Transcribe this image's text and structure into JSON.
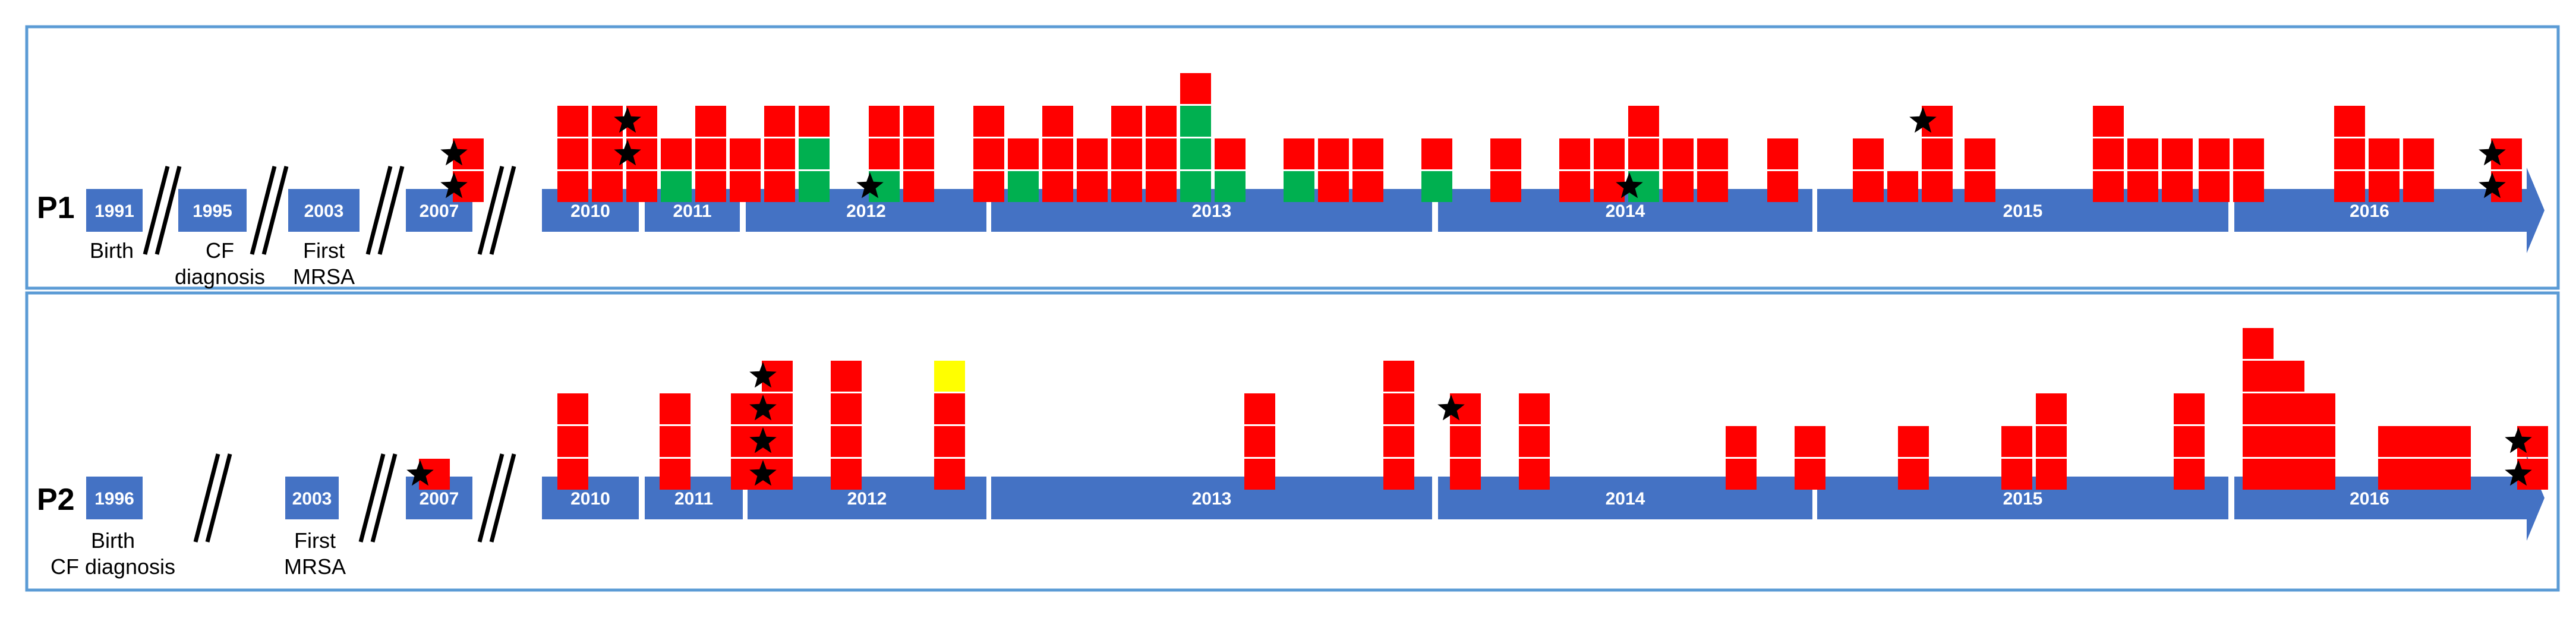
{
  "colors": {
    "frame": "#5b9bd5",
    "axis": "#4472c4",
    "red": "#ff0000",
    "green": "#00b050",
    "yellow": "#ffff00",
    "star": "#000000"
  },
  "panels": [
    {
      "label": "P1",
      "timeline": {
        "pre_years": [
          "1991",
          "1995",
          "2003",
          "2007"
        ],
        "years": [
          "2010",
          "2011",
          "2012",
          "2013",
          "2014",
          "2015",
          "2016"
        ]
      },
      "notes": [
        [
          "Birth"
        ],
        [
          "CF",
          "diagnosis"
        ],
        [
          "First",
          "MRSA"
        ]
      ],
      "columns": [
        {
          "stack": [
            "red",
            "red"
          ],
          "stars": [
            0,
            1
          ]
        },
        {
          "stack": [
            "red",
            "red",
            "red"
          ]
        },
        {
          "stack": [
            "red",
            "red",
            "red"
          ]
        },
        {
          "stack": [
            "red",
            "red",
            "red"
          ],
          "stars": [
            1,
            2
          ]
        },
        {
          "stack": [
            "green",
            "red"
          ]
        },
        {
          "stack": [
            "red",
            "red",
            "red"
          ]
        },
        {
          "stack": [
            "red",
            "red"
          ]
        },
        {
          "stack": [
            "red",
            "red",
            "red"
          ]
        },
        {
          "stack": [
            "green",
            "green",
            "red"
          ]
        },
        {
          "stack": [
            "green",
            "red",
            "red"
          ],
          "stars": [
            0
          ]
        },
        {
          "stack": [
            "red",
            "red",
            "red"
          ]
        },
        {
          "stack": [
            "red",
            "red",
            "red"
          ]
        },
        {
          "stack": [
            "green",
            "red"
          ]
        },
        {
          "stack": [
            "red",
            "red",
            "red"
          ]
        },
        {
          "stack": [
            "red",
            "red"
          ]
        },
        {
          "stack": [
            "red",
            "red",
            "red"
          ]
        },
        {
          "stack": [
            "red",
            "red",
            "red"
          ]
        },
        {
          "stack": [
            "green",
            "green",
            "green",
            "red"
          ]
        },
        {
          "stack": [
            "green",
            "red"
          ]
        },
        {
          "stack": [
            "green",
            "red"
          ]
        },
        {
          "stack": [
            "red",
            "red"
          ]
        },
        {
          "stack": [
            "red",
            "red"
          ]
        },
        {
          "stack": [
            "green",
            "red"
          ]
        },
        {
          "stack": [
            "red",
            "red"
          ]
        },
        {
          "stack": [
            "red",
            "red"
          ]
        },
        {
          "stack": [
            "red",
            "red"
          ]
        },
        {
          "stack": [
            "green",
            "red",
            "red"
          ],
          "stars": [
            0
          ]
        },
        {
          "stack": [
            "red",
            "red"
          ]
        },
        {
          "stack": [
            "red",
            "red"
          ]
        },
        {
          "stack": [
            "red",
            "red"
          ]
        },
        {
          "stack": [
            "red",
            "red"
          ]
        },
        {
          "stack": [
            "red"
          ]
        },
        {
          "stack": [
            "red",
            "red",
            "red"
          ],
          "stars": [
            2
          ]
        },
        {
          "stack": [
            "red",
            "red"
          ]
        },
        {
          "stack": [
            "red",
            "red",
            "red"
          ]
        },
        {
          "stack": [
            "red",
            "red"
          ]
        },
        {
          "stack": [
            "red",
            "red"
          ]
        },
        {
          "stack": [
            "red",
            "red"
          ]
        },
        {
          "stack": [
            "red",
            "red"
          ]
        },
        {
          "stack": [
            "red",
            "red",
            "red"
          ]
        },
        {
          "stack": [
            "red",
            "red"
          ]
        },
        {
          "stack": [
            "red",
            "red"
          ]
        },
        {
          "stack": [
            "red",
            "red"
          ],
          "stars": [
            0,
            1
          ]
        }
      ]
    },
    {
      "label": "P2",
      "timeline": {
        "pre_years": [
          "1996",
          "2003",
          "2007"
        ],
        "years": [
          "2010",
          "2011",
          "2012",
          "2013",
          "2014",
          "2015",
          "2016"
        ]
      },
      "notes": [
        [
          "Birth",
          "CF diagnosis"
        ],
        [
          "First",
          "MRSA"
        ]
      ],
      "columns": [
        {
          "stack": [
            "red"
          ],
          "stars": [
            0
          ]
        },
        {
          "stack": [
            "red",
            "red",
            "red"
          ]
        },
        {
          "stack": [
            "red",
            "red",
            "red"
          ]
        },
        {
          "stack": [
            "red",
            "red",
            "red"
          ]
        },
        {
          "stack": [
            "red",
            "red",
            "red",
            "red"
          ],
          "stars": [
            0,
            1,
            2,
            3
          ]
        },
        {
          "stack": [
            "red",
            "red",
            "red",
            "red"
          ]
        },
        {
          "stack": [
            "red",
            "red",
            "red",
            "yellow"
          ]
        },
        {
          "stack": [
            "red",
            "red",
            "red"
          ]
        },
        {
          "stack": [
            "red",
            "red",
            "red",
            "red"
          ]
        },
        {
          "stack": [
            "red",
            "red",
            "red"
          ],
          "stars": [
            2
          ]
        },
        {
          "stack": [
            "red",
            "red",
            "red"
          ]
        },
        {
          "stack": [
            "red",
            "red"
          ]
        },
        {
          "stack": [
            "red",
            "red"
          ]
        },
        {
          "stack": [
            "red",
            "red"
          ]
        },
        {
          "stack": [
            "red",
            "red"
          ]
        },
        {
          "stack": [
            "red",
            "red",
            "red"
          ]
        },
        {
          "stack": [
            "red",
            "red",
            "red"
          ]
        },
        {
          "stack": [
            "red",
            "red",
            "red",
            "red",
            "red"
          ]
        },
        {
          "stack": [
            "red",
            "red",
            "red",
            "red"
          ]
        },
        {
          "stack": [
            "red",
            "red",
            "red"
          ]
        },
        {
          "stack": [
            "red",
            "red"
          ]
        },
        {
          "stack": [
            "red",
            "red"
          ]
        },
        {
          "stack": [
            "red",
            "red"
          ]
        },
        {
          "stack": [
            "red",
            "red"
          ],
          "stars": [
            0,
            1
          ]
        }
      ]
    }
  ]
}
